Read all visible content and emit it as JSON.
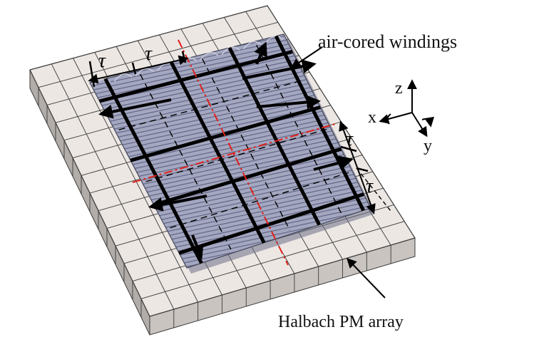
{
  "labels": {
    "windings": "air-cored windings",
    "halbach": "Halbach PM array",
    "pole_pitch_symbol": "τ",
    "axis_x": "x",
    "axis_y": "y",
    "axis_z": "z"
  },
  "colors": {
    "magnet_top": "#ece7e3",
    "magnet_front": "#c9c4c0",
    "magnet_side": "#b2ada9",
    "grid_line": "#3a3a3a",
    "coil_fill": "#a4a7c0",
    "coil_stripe": "#5d6080",
    "winding_lines": "#000000",
    "centerline": "#e0201a"
  }
}
